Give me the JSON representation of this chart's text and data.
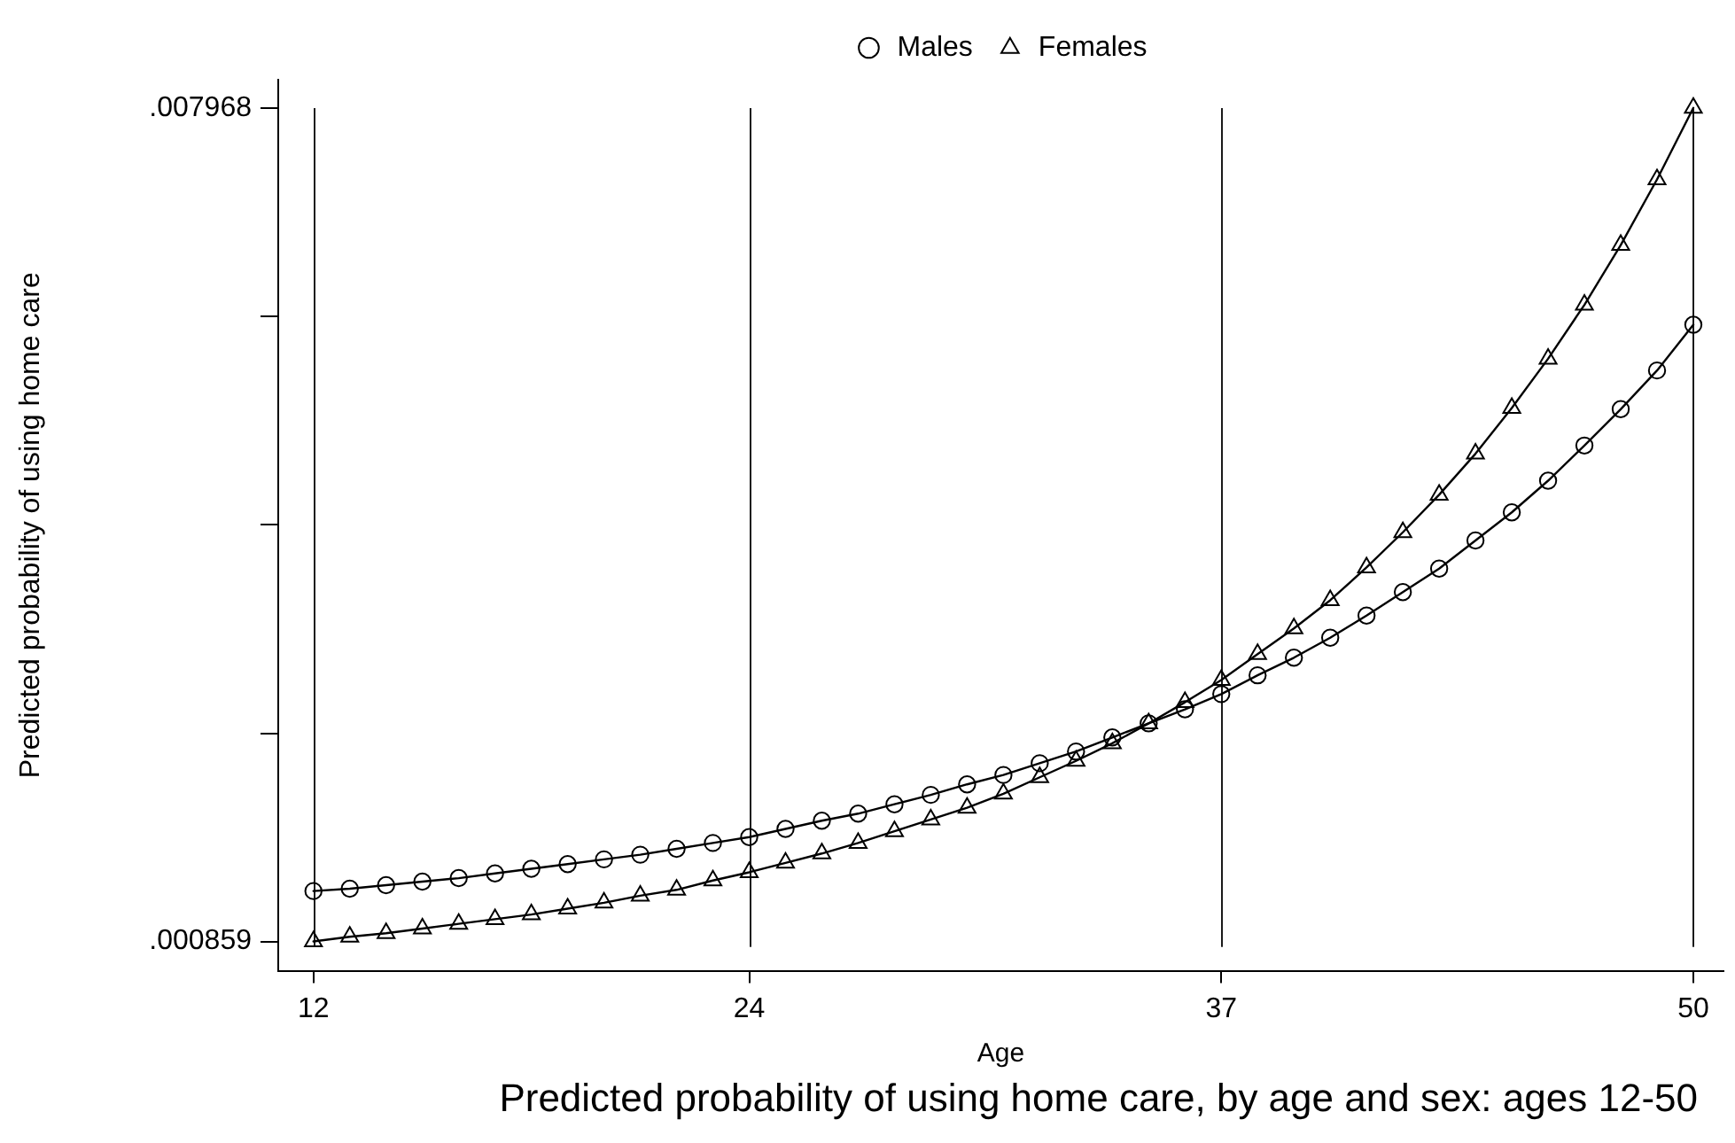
{
  "chart_data": {
    "type": "line",
    "title": "Predicted probability of using home care, by age and sex: ages 12-50",
    "xlabel": "Age",
    "ylabel": "Predicted probability of using home care",
    "x": [
      12,
      13,
      14,
      15,
      16,
      17,
      18,
      19,
      20,
      21,
      22,
      23,
      24,
      25,
      26,
      27,
      28,
      29,
      30,
      31,
      32,
      33,
      34,
      35,
      36,
      37,
      38,
      39,
      40,
      41,
      42,
      43,
      44,
      45,
      46,
      47,
      48,
      49,
      50
    ],
    "series": [
      {
        "name": "Males",
        "color": "#000000",
        "marker": "circle",
        "values": [
          0.00129,
          0.00131,
          0.00134,
          0.00137,
          0.0014,
          0.00144,
          0.00148,
          0.00152,
          0.00156,
          0.0016,
          0.00165,
          0.0017,
          0.00175,
          0.00182,
          0.00189,
          0.00195,
          0.00203,
          0.00211,
          0.0022,
          0.00228,
          0.00238,
          0.00248,
          0.0026,
          0.00272,
          0.00284,
          0.00297,
          0.00313,
          0.00328,
          0.00345,
          0.00364,
          0.00384,
          0.00404,
          0.00428,
          0.00452,
          0.00479,
          0.00509,
          0.0054,
          0.00573,
          0.00612
        ]
      },
      {
        "name": "Females",
        "color": "#000000",
        "marker": "triangle",
        "values": [
          0.00086,
          0.0009,
          0.00093,
          0.00097,
          0.00101,
          0.00105,
          0.00109,
          0.00114,
          0.00119,
          0.00125,
          0.0013,
          0.00138,
          0.00145,
          0.00153,
          0.00161,
          0.0017,
          0.0018,
          0.0019,
          0.002,
          0.00212,
          0.00226,
          0.0024,
          0.00255,
          0.00272,
          0.0029,
          0.00309,
          0.00331,
          0.00353,
          0.00377,
          0.00405,
          0.00435,
          0.00467,
          0.00502,
          0.00541,
          0.00583,
          0.00629,
          0.0068,
          0.00736,
          0.00797
        ]
      }
    ],
    "xlim": [
      11.03,
      50.83
    ],
    "ylim": [
      0.00061,
      0.00821
    ],
    "xticks": [
      12,
      24,
      37,
      50
    ],
    "yticks": [
      {
        "value": 0.000859,
        "label": ".000859"
      },
      {
        "value": 0.002636,
        "label": null
      },
      {
        "value": 0.004414,
        "label": null
      },
      {
        "value": 0.006191,
        "label": null
      },
      {
        "value": 0.007968,
        "label": ".007968"
      }
    ],
    "grid": "x",
    "legend": "top"
  }
}
